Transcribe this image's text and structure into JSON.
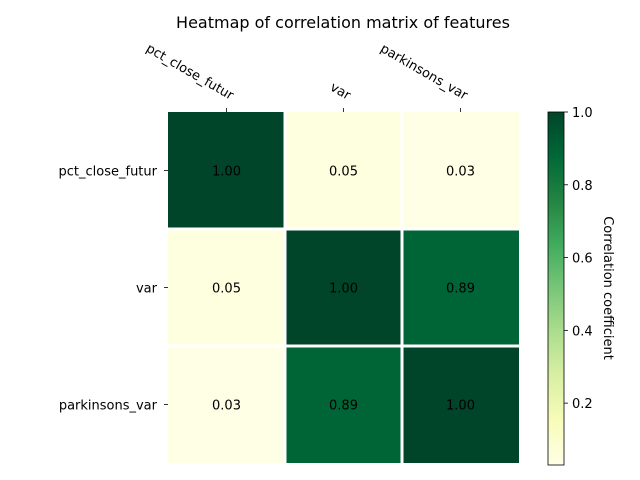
{
  "chart_data": {
    "type": "heatmap",
    "title": "Heatmap of correlation matrix of features",
    "columns": [
      "pct_close_futur",
      "var",
      "parkinsons_var"
    ],
    "rows": [
      "pct_close_futur",
      "var",
      "parkinsons_var"
    ],
    "values": [
      [
        1.0,
        0.05,
        0.03
      ],
      [
        0.05,
        1.0,
        0.89
      ],
      [
        0.03,
        0.89,
        1.0
      ]
    ],
    "value_labels": [
      [
        "1.00",
        "0.05",
        "0.03"
      ],
      [
        "0.05",
        "1.00",
        "0.89"
      ],
      [
        "0.03",
        "0.89",
        "1.00"
      ]
    ],
    "colormap": "YlGn",
    "colorbar": {
      "label": "Correlation coefficient",
      "range": [
        0.03,
        1.0
      ],
      "ticks": [
        0.2,
        0.4,
        0.6,
        0.8,
        1.0
      ],
      "tick_labels": [
        "0.2",
        "0.4",
        "0.6",
        "0.8",
        "1.0"
      ]
    },
    "column_labels_position": "top",
    "grid": false
  },
  "colors": {
    "cmap_stops": [
      "#ffffe5",
      "#f7fcb9",
      "#d9f0a3",
      "#addd8e",
      "#78c679",
      "#41ab5d",
      "#238443",
      "#006837",
      "#004529"
    ],
    "cell_border": "#ffffff",
    "text_dark": "#000000",
    "text_light": "#ffffff"
  }
}
